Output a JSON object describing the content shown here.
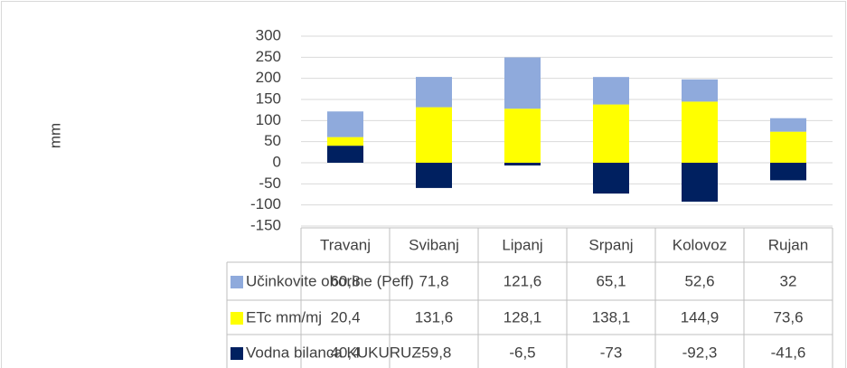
{
  "chart_data": {
    "type": "bar",
    "stacked": true,
    "y_label": "mm",
    "categories": [
      "Travanj",
      "Svibanj",
      "Lipanj",
      "Srpanj",
      "Kolovoz",
      "Rujan"
    ],
    "series": [
      {
        "name": "Učinkovite oborine (Peff)",
        "color": "#8faadc",
        "values": [
          60.8,
          71.8,
          121.6,
          65.1,
          52.6,
          32
        ],
        "value_labels": [
          "60,8",
          "71,8",
          "121,6",
          "65,1",
          "52,6",
          "32"
        ]
      },
      {
        "name": "ETc mm/mj",
        "color": "#ffff00",
        "values": [
          20.4,
          131.6,
          128.1,
          138.1,
          144.9,
          73.6
        ],
        "value_labels": [
          "20,4",
          "131,6",
          "128,1",
          "138,1",
          "144,9",
          "73,6"
        ]
      },
      {
        "name": "Vodna bilanca KUKURUZ",
        "color": "#002060",
        "values": [
          40.4,
          -59.8,
          -6.5,
          -73,
          -92.3,
          -41.6
        ],
        "value_labels": [
          "40,4",
          "-59,8",
          "-6,5",
          "-73",
          "-92,3",
          "-41,6"
        ]
      }
    ],
    "ylim": [
      -150,
      300
    ],
    "yticks": [
      300,
      250,
      200,
      150,
      100,
      50,
      0,
      -50,
      -100,
      -150
    ],
    "grid": true,
    "data_table": true
  }
}
